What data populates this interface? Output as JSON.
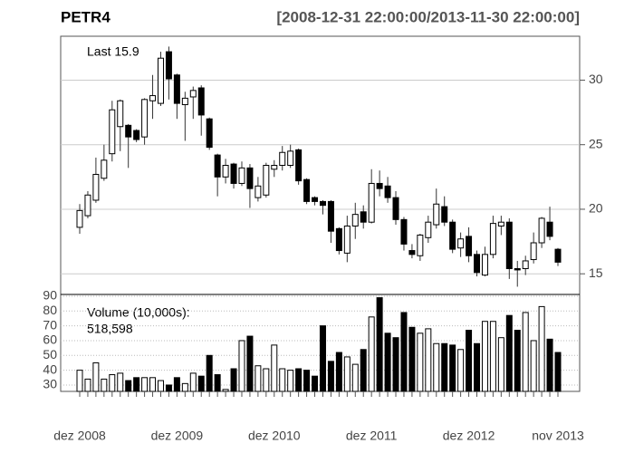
{
  "chart_data": {
    "type": "candlestick",
    "title": "PETR4",
    "subtitle": "[2008-12-31 22:00:00/2013-11-30 22:00:00]",
    "last_label": "Last 15.9",
    "volume_label": "Volume (10,000s):",
    "volume_total": "518,598",
    "up_color": "#ffffff",
    "down_color": "#000000",
    "grid": true,
    "categories": [
      "dez 2008",
      null,
      null,
      null,
      null,
      null,
      null,
      null,
      null,
      null,
      null,
      null,
      "dez 2009",
      null,
      null,
      null,
      null,
      null,
      null,
      null,
      null,
      null,
      null,
      null,
      "dez 2010",
      null,
      null,
      null,
      null,
      null,
      null,
      null,
      null,
      null,
      null,
      null,
      "dez 2011",
      null,
      null,
      null,
      null,
      null,
      null,
      null,
      null,
      null,
      null,
      null,
      "dez 2012",
      null,
      null,
      null,
      null,
      null,
      null,
      null,
      null,
      null,
      null,
      "nov 2013"
    ],
    "open": [
      18.6,
      19.5,
      20.7,
      22.4,
      24.3,
      26.4,
      26.5,
      26.1,
      25.6,
      28.4,
      28.2,
      32.2,
      30.4,
      28.1,
      28.7,
      29.4,
      27.0,
      24.2,
      22.5,
      23.5,
      22.0,
      23.2,
      20.9,
      21.1,
      23.1,
      23.4,
      23.4,
      24.6,
      22.3,
      20.9,
      20.6,
      20.6,
      18.5,
      16.6,
      18.7,
      19.8,
      19.0,
      22.0,
      21.8,
      20.9,
      19.2,
      16.8,
      16.4,
      17.8,
      18.8,
      20.2,
      19.0,
      17.0,
      17.9,
      16.5,
      14.9,
      16.5,
      18.7,
      19.0,
      15.4,
      15.4,
      16.1,
      17.4,
      19.0,
      16.9
    ],
    "high": [
      20.4,
      21.4,
      24.0,
      25.0,
      28.4,
      28.5,
      26.6,
      26.2,
      28.6,
      30.4,
      32.2,
      32.6,
      30.5,
      29.1,
      29.5,
      29.6,
      27.1,
      24.3,
      23.9,
      23.6,
      23.7,
      23.5,
      22.5,
      23.6,
      23.8,
      24.9,
      25.0,
      24.7,
      22.4,
      21.0,
      20.7,
      20.7,
      18.6,
      19.5,
      20.5,
      20.3,
      23.1,
      23.0,
      22.5,
      21.4,
      19.4,
      17.3,
      18.1,
      19.5,
      21.6,
      21.0,
      19.2,
      18.2,
      18.6,
      16.8,
      17.1,
      19.5,
      19.5,
      19.3,
      16.0,
      16.4,
      18.2,
      19.4,
      20.2,
      17.0
    ],
    "low": [
      18.1,
      19.3,
      20.5,
      22.2,
      23.7,
      24.5,
      23.2,
      25.2,
      25.0,
      27.0,
      28.0,
      28.5,
      27.0,
      25.3,
      27.0,
      25.7,
      24.6,
      21.0,
      22.0,
      21.6,
      21.8,
      20.1,
      20.6,
      20.9,
      22.5,
      23.0,
      23.2,
      21.9,
      20.4,
      20.3,
      19.6,
      17.4,
      16.5,
      15.9,
      17.7,
      18.5,
      18.9,
      21.0,
      20.5,
      18.8,
      16.8,
      16.2,
      16.0,
      17.4,
      18.5,
      18.7,
      16.6,
      16.3,
      15.9,
      14.8,
      14.8,
      16.2,
      18.0,
      14.6,
      14.0,
      14.9,
      15.8,
      17.0,
      17.6,
      15.6
    ],
    "close": [
      19.9,
      21.1,
      22.7,
      23.8,
      27.7,
      28.4,
      25.6,
      25.4,
      28.5,
      28.8,
      31.7,
      30.1,
      28.2,
      28.6,
      29.2,
      27.3,
      24.8,
      22.5,
      23.4,
      22.0,
      23.2,
      21.6,
      21.8,
      23.4,
      23.4,
      24.4,
      24.5,
      22.2,
      20.6,
      20.6,
      20.3,
      18.3,
      16.8,
      18.7,
      19.6,
      19.0,
      22.0,
      21.6,
      20.9,
      19.2,
      17.3,
      16.5,
      18.0,
      19.0,
      20.4,
      19.0,
      16.9,
      17.7,
      16.4,
      15.1,
      16.5,
      18.9,
      19.0,
      15.4,
      15.3,
      16.0,
      17.4,
      19.3,
      17.9,
      15.9
    ],
    "volume": [
      40,
      34,
      45,
      34,
      37,
      38,
      33,
      35,
      35,
      35,
      33,
      30,
      35,
      31,
      38,
      36,
      50,
      37,
      27,
      41,
      60,
      63,
      43,
      41,
      57,
      41,
      40,
      41,
      40,
      36,
      70,
      46,
      52,
      49,
      44,
      54,
      76,
      89,
      65,
      62,
      79,
      69,
      65,
      68,
      58,
      58,
      57,
      54,
      67,
      58,
      73,
      73,
      62,
      77,
      67,
      79,
      60,
      83,
      61,
      52
    ],
    "ylim": [
      13.4,
      33.4
    ],
    "yticks": [
      15,
      20,
      25,
      30
    ],
    "volume_ylim": [
      25.7,
      91.2
    ],
    "volume_yticks": [
      30,
      40,
      50,
      60,
      70,
      80,
      90
    ]
  }
}
